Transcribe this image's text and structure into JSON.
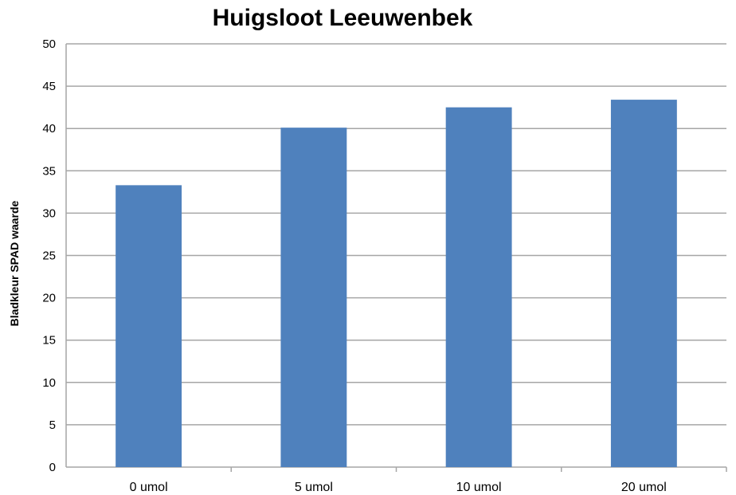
{
  "chart_data": {
    "type": "bar",
    "title": "Huigsloot Leeuwenbek",
    "xlabel": "",
    "ylabel": "Bladkleur SPAD waarde",
    "categories": [
      "0 umol",
      "5 umol",
      "10 umol",
      "20 umol"
    ],
    "values": [
      33.3,
      40.1,
      42.5,
      43.4
    ],
    "ylim": [
      0,
      50
    ],
    "yticks": [
      0,
      5,
      10,
      15,
      20,
      25,
      30,
      35,
      40,
      45,
      50
    ],
    "grid": true,
    "legend": "none",
    "bar_color": "#4f81bd",
    "grid_color": "#a6a6a6"
  }
}
